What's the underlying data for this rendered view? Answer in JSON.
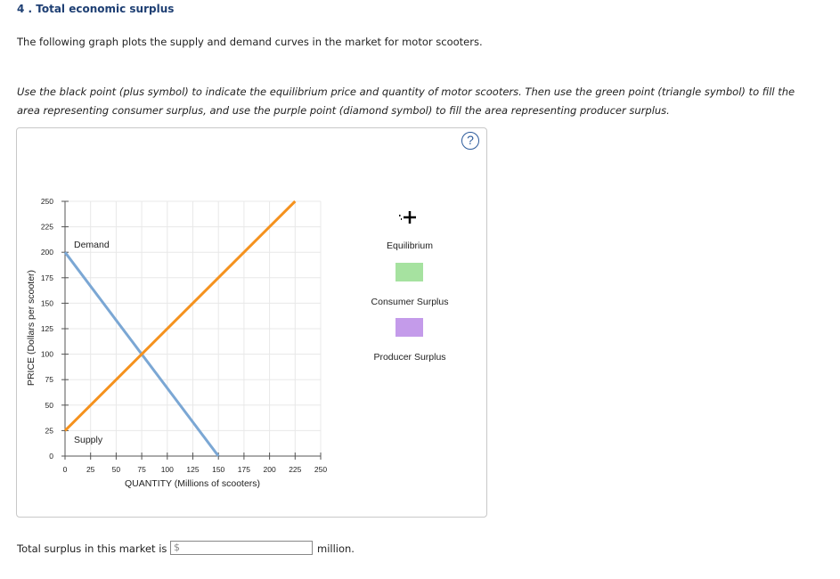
{
  "question": {
    "title": "4 . Total economic surplus",
    "intro": "The following graph plots the supply and demand curves in the market for motor scooters.",
    "instructions": "Use the black point (plus symbol) to indicate the equilibrium price and quantity of motor scooters. Then use the green point (triangle symbol) to fill the area representing consumer surplus, and use the purple point (diamond symbol) to fill the area representing producer surplus."
  },
  "help": {
    "label": "?"
  },
  "chart_data": {
    "type": "line",
    "xlabel": "QUANTITY (Millions of scooters)",
    "ylabel": "PRICE (Dollars per scooter)",
    "xlim": [
      0,
      250
    ],
    "ylim": [
      0,
      250
    ],
    "xticks": [
      "0",
      "25",
      "50",
      "75",
      "100",
      "125",
      "150",
      "175",
      "200",
      "225",
      "250"
    ],
    "yticks": [
      "0",
      "25",
      "50",
      "75",
      "100",
      "125",
      "150",
      "175",
      "200",
      "225",
      "250"
    ],
    "grid": true,
    "series": [
      {
        "name": "Demand",
        "color": "#7ba7d4",
        "points": [
          [
            0,
            200
          ],
          [
            150,
            0
          ]
        ]
      },
      {
        "name": "Supply",
        "color": "#f5921e",
        "points": [
          [
            0,
            25
          ],
          [
            225,
            250
          ]
        ]
      }
    ]
  },
  "tools": {
    "equilibrium": {
      "label": "Equilibrium",
      "icon": "plus-icon",
      "color": "#000000"
    },
    "consumer_surplus": {
      "label": "Consumer Surplus",
      "icon": "triangle-icon",
      "color": "#a6e2a0"
    },
    "producer_surplus": {
      "label": "Producer Surplus",
      "icon": "diamond-icon",
      "color": "#c49bea"
    }
  },
  "answer": {
    "label": "Total surplus in this market is",
    "currency": "$",
    "value": "",
    "unit": "million."
  }
}
